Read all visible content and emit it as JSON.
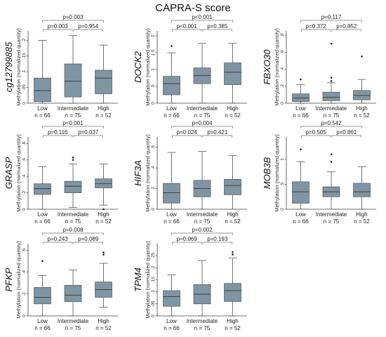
{
  "title": "CAPRA-S score",
  "colors": {
    "box": "#7f95a3",
    "line": "#555555",
    "bracket": "#777777"
  },
  "chart_data": [
    {
      "type": "box",
      "gene": "cg12799885",
      "ylabel": "Methylation (normalized quantity)",
      "categories": [
        "Low",
        "Intermediate",
        "High"
      ],
      "counts": [
        "n = 66",
        "n = 75",
        "n = 52"
      ],
      "ylim": [
        0,
        0.23
      ],
      "yticks": [
        0,
        0.05,
        0.1,
        0.15,
        0.2
      ],
      "ytick_labels": [
        "0",
        ".05",
        ".1",
        ".15",
        ".2"
      ],
      "boxes": [
        {
          "min": 0,
          "q1": 0.005,
          "median": 0.04,
          "q3": 0.08,
          "max": 0.2,
          "outliers": []
        },
        {
          "min": 0,
          "q1": 0.02,
          "median": 0.07,
          "q3": 0.125,
          "max": 0.215,
          "outliers": []
        },
        {
          "min": 0,
          "q1": 0.03,
          "median": 0.08,
          "q3": 0.105,
          "max": 0.185,
          "outliers": []
        }
      ],
      "pvalues": {
        "low_int": "p=0.003",
        "int_high": "p=0.954",
        "low_high": "p=0.003"
      }
    },
    {
      "type": "box",
      "gene": "DOCK2",
      "ylabel": "Methylation (normalized quantity)",
      "categories": [
        "Low",
        "Intermediate",
        "High"
      ],
      "counts": [
        "n = 66",
        "n = 75",
        "n = 52"
      ],
      "ylim": [
        0,
        2.15
      ],
      "yticks": [
        0,
        0.5,
        1,
        1.5,
        2
      ],
      "ytick_labels": [
        "0",
        ".5",
        "1",
        "1.5",
        "2"
      ],
      "boxes": [
        {
          "min": 0.0,
          "q1": 0.25,
          "median": 0.58,
          "q3": 0.8,
          "max": 1.5,
          "outliers": [
            1.7
          ]
        },
        {
          "min": 0.0,
          "q1": 0.58,
          "median": 0.82,
          "q3": 1.05,
          "max": 1.78,
          "outliers": []
        },
        {
          "min": 0.0,
          "q1": 0.55,
          "median": 0.92,
          "q3": 1.2,
          "max": 1.78,
          "outliers": []
        }
      ],
      "pvalues": {
        "low_int": "p<0.001",
        "int_high": "p=0.385",
        "low_high": "p<0.001"
      }
    },
    {
      "type": "box",
      "gene": "FBXO30",
      "ylabel": "Methylation (normalized quantity)",
      "categories": [
        "Low",
        "Intermediate",
        "High"
      ],
      "counts": [
        "n = 66",
        "n = 75",
        "n = 52"
      ],
      "ylim": [
        0,
        0.85
      ],
      "yticks": [
        0,
        0.2,
        0.4,
        0.6,
        0.8
      ],
      "ytick_labels": [
        "0",
        ".2",
        ".4",
        ".6",
        ".8"
      ],
      "boxes": [
        {
          "min": 0,
          "q1": 0.02,
          "median": 0.06,
          "q3": 0.11,
          "max": 0.22,
          "outliers": [
            0.28
          ]
        },
        {
          "min": 0,
          "q1": 0.03,
          "median": 0.07,
          "q3": 0.13,
          "max": 0.24,
          "outliers": [
            0.26,
            0.3,
            0.7
          ]
        },
        {
          "min": 0,
          "q1": 0.04,
          "median": 0.09,
          "q3": 0.15,
          "max": 0.28,
          "outliers": [
            0.55
          ]
        }
      ],
      "pvalues": {
        "low_int": "p=0.372",
        "int_high": "p=0.852",
        "low_high": "p=0.117"
      }
    },
    {
      "type": "box",
      "gene": "GRASP",
      "ylabel": "Methylation (normalized quantity)",
      "categories": [
        "Low",
        "Intermediate",
        "High"
      ],
      "counts": [
        "n = 66",
        "n = 75",
        "n = 52"
      ],
      "ylim": [
        0,
        0.88
      ],
      "yticks": [
        0,
        0.2,
        0.4,
        0.6,
        0.8
      ],
      "ytick_labels": [
        "0",
        ".2",
        ".4",
        ".6",
        ".8"
      ],
      "boxes": [
        {
          "min": 0,
          "q1": 0.18,
          "median": 0.25,
          "q3": 0.31,
          "max": 0.52,
          "outliers": []
        },
        {
          "min": 0.02,
          "q1": 0.2,
          "median": 0.28,
          "q3": 0.34,
          "max": 0.55,
          "outliers": [
            0.6,
            0.63
          ]
        },
        {
          "min": 0.05,
          "q1": 0.26,
          "median": 0.31,
          "q3": 0.37,
          "max": 0.55,
          "outliers": [
            0.0
          ]
        }
      ],
      "pvalues": {
        "low_int": "p=0.116",
        "int_high": "p=0.037",
        "low_high": "p<0.001"
      }
    },
    {
      "type": "box",
      "gene": "HIF3A",
      "ylabel": "Methylation (normalized quantity)",
      "categories": [
        "Low",
        "Intermediate",
        "High"
      ],
      "counts": [
        "n = 66",
        "n = 75",
        "n = 52"
      ],
      "ylim": [
        0,
        0.7
      ],
      "yticks": [
        0,
        0.2,
        0.4,
        0.6
      ],
      "ytick_labels": [
        "0",
        ".2",
        ".4",
        ".6"
      ],
      "boxes": [
        {
          "min": 0,
          "q1": 0.06,
          "median": 0.16,
          "q3": 0.25,
          "max": 0.55,
          "outliers": []
        },
        {
          "min": 0,
          "q1": 0.12,
          "median": 0.2,
          "q3": 0.28,
          "max": 0.56,
          "outliers": []
        },
        {
          "min": 0,
          "q1": 0.14,
          "median": 0.23,
          "q3": 0.29,
          "max": 0.52,
          "outliers": []
        }
      ],
      "pvalues": {
        "low_int": "p=0.024",
        "int_high": "p=0.421",
        "low_high": "p=0.004"
      }
    },
    {
      "type": "box",
      "gene": "MOB3B",
      "ylabel": "Methylation (normalized quantity)",
      "categories": [
        "Low",
        "Intermediate",
        "High"
      ],
      "counts": [
        "n = 66",
        "n = 75",
        "n = 52"
      ],
      "ylim": [
        0,
        1.45
      ],
      "yticks": [
        0,
        0.5,
        1
      ],
      "ytick_labels": [
        "0",
        ".5",
        "1"
      ],
      "boxes": [
        {
          "min": 0.0,
          "q1": 0.12,
          "median": 0.35,
          "q3": 0.55,
          "max": 0.95,
          "outliers": [
            1.2
          ]
        },
        {
          "min": 0.0,
          "q1": 0.25,
          "median": 0.35,
          "q3": 0.45,
          "max": 0.75,
          "outliers": [
            0.95,
            1.1
          ]
        },
        {
          "min": 0.0,
          "q1": 0.25,
          "median": 0.35,
          "q3": 0.52,
          "max": 0.85,
          "outliers": []
        }
      ],
      "pvalues": {
        "low_int": "p=0.505",
        "int_high": "p=0.861",
        "low_high": "p=0.542"
      }
    },
    {
      "type": "box",
      "gene": "PFKP",
      "ylabel": "Methylation (normalized quantity)",
      "categories": [
        "Low",
        "Intermediate",
        "High"
      ],
      "counts": [
        "n = 66",
        "n = 75",
        "n = 52"
      ],
      "ylim": [
        0,
        0.66
      ],
      "yticks": [
        0,
        0.2,
        0.4,
        0.6
      ],
      "ytick_labels": [
        "0",
        ".2",
        ".4",
        ".6"
      ],
      "boxes": [
        {
          "min": 0,
          "q1": 0.11,
          "median": 0.17,
          "q3": 0.26,
          "max": 0.37,
          "outliers": [
            0.5
          ]
        },
        {
          "min": 0.0,
          "q1": 0.13,
          "median": 0.19,
          "q3": 0.28,
          "max": 0.42,
          "outliers": []
        },
        {
          "min": 0.08,
          "q1": 0.17,
          "median": 0.24,
          "q3": 0.31,
          "max": 0.48,
          "outliers": [
            0.56,
            0.58
          ]
        }
      ],
      "pvalues": {
        "low_int": "p=0.243",
        "int_high": "p=0.089",
        "low_high": "p=0.008"
      }
    },
    {
      "type": "box",
      "gene": "TPM4",
      "ylabel": "Methylation (normalized quantity)",
      "categories": [
        "Low",
        "Intermediate",
        "High"
      ],
      "counts": [
        "n = 66",
        "n = 75",
        "n = 52"
      ],
      "ylim": [
        0,
        0.3
      ],
      "yticks": [
        0,
        0.05,
        0.1,
        0.15,
        0.2,
        0.25
      ],
      "ytick_labels": [
        "0",
        ".05",
        ".1",
        ".15",
        ".2",
        ".25"
      ],
      "boxes": [
        {
          "min": 0,
          "q1": 0.04,
          "median": 0.08,
          "q3": 0.105,
          "max": 0.17,
          "outliers": []
        },
        {
          "min": 0,
          "q1": 0.05,
          "median": 0.09,
          "q3": 0.13,
          "max": 0.23,
          "outliers": []
        },
        {
          "min": 0,
          "q1": 0.06,
          "median": 0.105,
          "q3": 0.135,
          "max": 0.24,
          "outliers": [
            0.255,
            0.265
          ]
        }
      ],
      "pvalues": {
        "low_int": "p=0.069",
        "int_high": "p=0.193",
        "low_high": "p=0.002"
      }
    }
  ]
}
